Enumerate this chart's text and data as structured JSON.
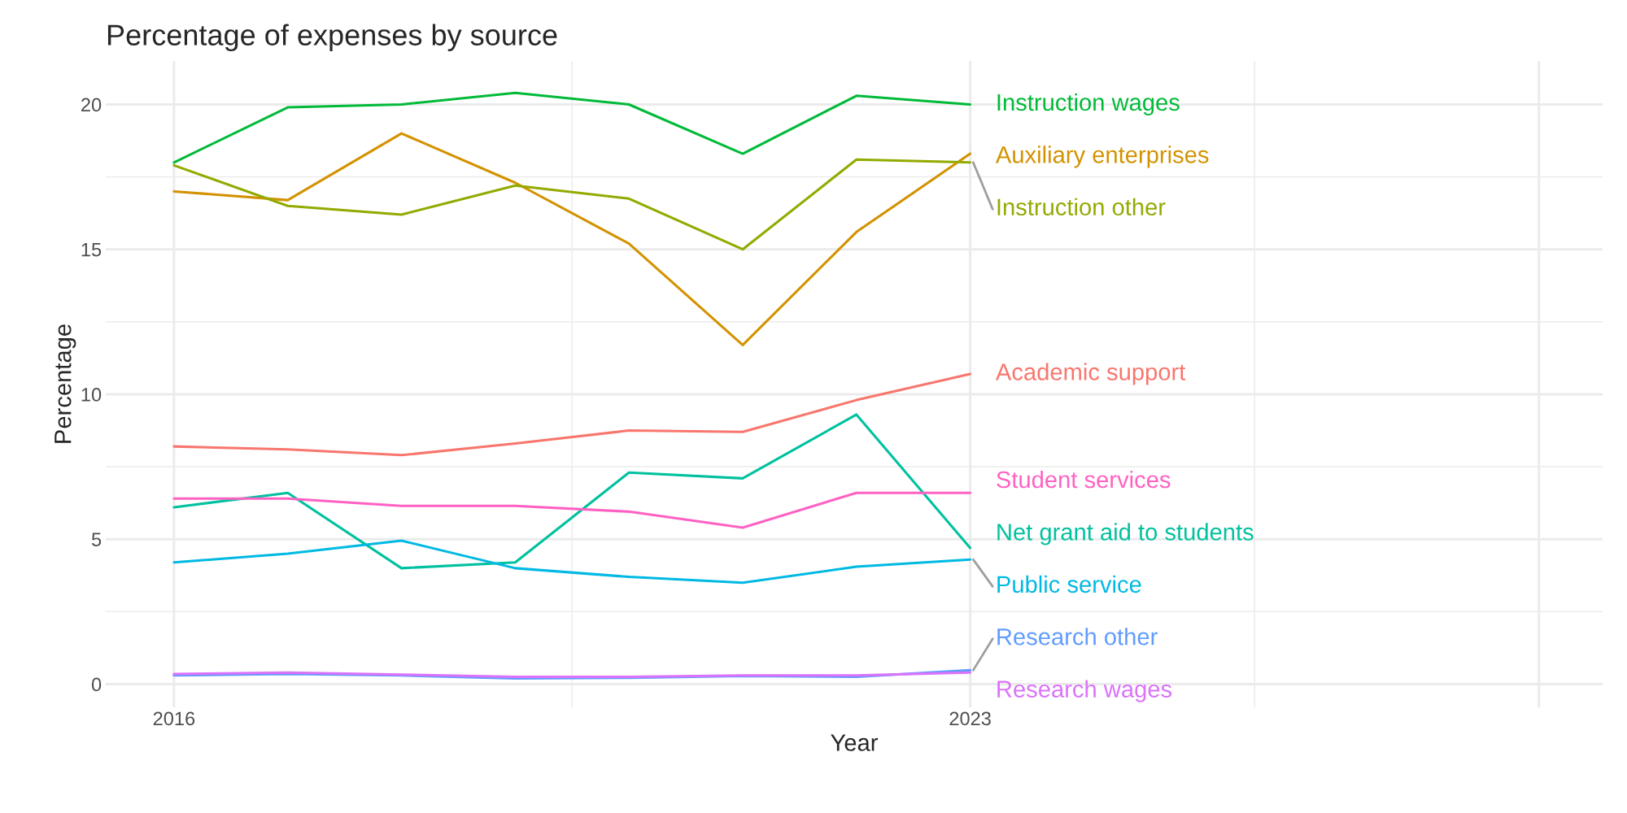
{
  "chart_data": {
    "type": "line",
    "title": "Percentage of expenses by source",
    "xlabel": "Year",
    "ylabel": "Percentage",
    "x": [
      2016,
      2017,
      2018,
      2019,
      2020,
      2021,
      2022,
      2023
    ],
    "xlim": [
      2015.4,
      2028.56
    ],
    "xticks": [
      2016,
      2023,
      {
        "value": 2028,
        "label": null
      }
    ],
    "ylim": [
      -0.8,
      21.5
    ],
    "yticks": [
      0,
      5,
      10,
      15,
      20
    ],
    "grid": true,
    "legend": false,
    "marker": "none",
    "line_style": "solid",
    "series": [
      {
        "name": "Academic support",
        "color": "#F8766D",
        "values": [
          8.2,
          8.1,
          7.9,
          8.3,
          8.75,
          8.7,
          9.8,
          10.7
        ]
      },
      {
        "name": "Auxiliary enterprises",
        "color": "#D39200",
        "values": [
          17.0,
          16.7,
          19.0,
          17.3,
          15.2,
          11.7,
          15.6,
          18.3
        ]
      },
      {
        "name": "Instruction other",
        "color": "#93AA00",
        "values": [
          17.9,
          16.5,
          16.2,
          17.2,
          16.75,
          15.0,
          18.1,
          18.0
        ]
      },
      {
        "name": "Instruction wages",
        "color": "#00BA38",
        "values": [
          18.0,
          19.9,
          20.0,
          20.4,
          20.0,
          18.3,
          20.3,
          20.0
        ]
      },
      {
        "name": "Net grant aid to students",
        "color": "#00C19F",
        "values": [
          6.1,
          6.6,
          4.0,
          4.2,
          7.3,
          7.1,
          9.3,
          4.7
        ]
      },
      {
        "name": "Public service",
        "color": "#00B9E3",
        "values": [
          4.2,
          4.5,
          4.95,
          4.0,
          3.7,
          3.5,
          4.05,
          4.3
        ]
      },
      {
        "name": "Research other",
        "color": "#619CFF",
        "values": [
          0.3,
          0.35,
          0.3,
          0.2,
          0.22,
          0.28,
          0.25,
          0.48
        ]
      },
      {
        "name": "Research wages",
        "color": "#DB72FB",
        "values": [
          0.35,
          0.4,
          0.33,
          0.25,
          0.25,
          0.3,
          0.3,
          0.4
        ]
      },
      {
        "name": "Student services",
        "color": "#FF61C3",
        "values": [
          6.4,
          6.4,
          6.15,
          6.15,
          5.95,
          5.4,
          6.6,
          6.6
        ]
      }
    ]
  }
}
